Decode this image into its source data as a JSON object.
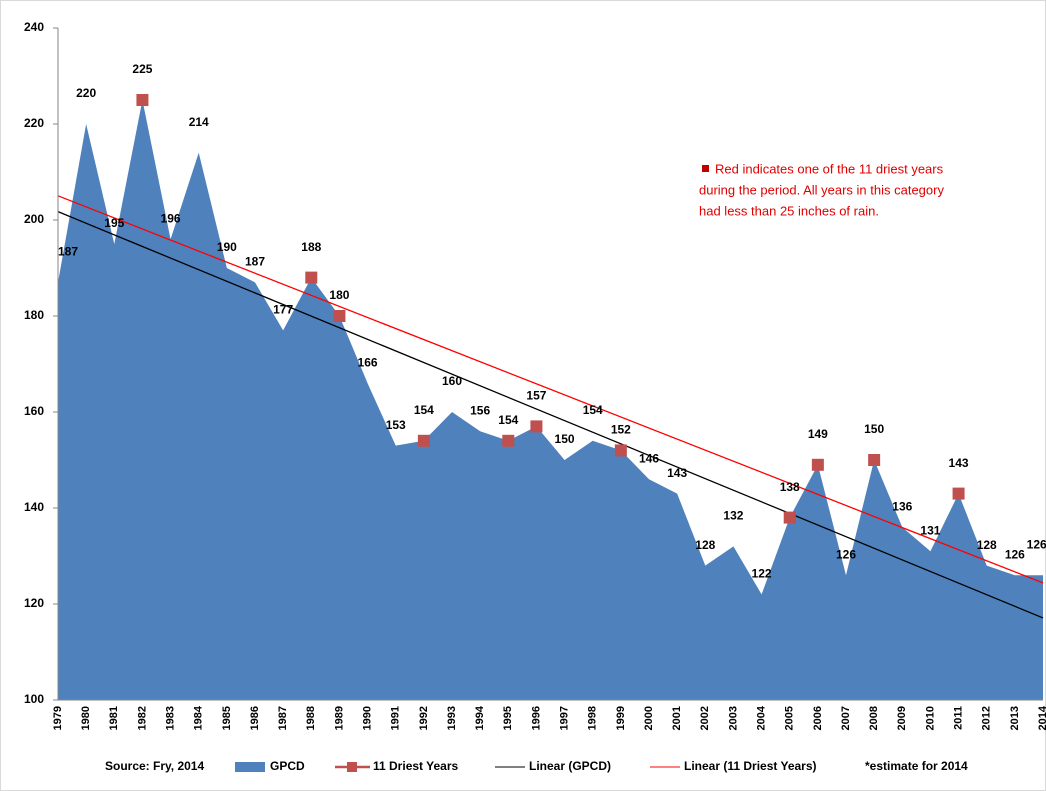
{
  "chart_data": {
    "type": "area",
    "categories": [
      "1979",
      "1980",
      "1981",
      "1982",
      "1983",
      "1984",
      "1985",
      "1986",
      "1987",
      "1988",
      "1989",
      "1990",
      "1991",
      "1992",
      "1993",
      "1994",
      "1995",
      "1996",
      "1997",
      "1998",
      "1999",
      "2000",
      "2001",
      "2002",
      "2003",
      "2004",
      "2005",
      "2006",
      "2007",
      "2008",
      "2009",
      "2010",
      "2011",
      "2012",
      "2013",
      "2014"
    ],
    "series": [
      {
        "name": "GPCD",
        "color": "#4f81bd",
        "values": [
          187,
          220,
          195,
          225,
          196,
          214,
          190,
          187,
          177,
          188,
          180,
          166,
          153,
          154,
          160,
          156,
          154,
          157,
          150,
          154,
          152,
          146,
          143,
          128,
          132,
          122,
          138,
          149,
          126,
          150,
          136,
          131,
          143,
          128,
          126,
          126
        ],
        "value_labels": [
          "187",
          "220",
          "195",
          "225",
          "196",
          "214",
          "190",
          "187",
          "177",
          "188",
          "180",
          "166",
          "153",
          "154",
          "160",
          "156",
          "154",
          "157",
          "150",
          "154",
          "152",
          "146",
          "143",
          "128",
          "132",
          "122",
          "138",
          "149",
          "126",
          "150",
          "136",
          "131",
          "143",
          "128",
          "126",
          "126*"
        ],
        "trendline": {
          "name": "Linear (GPCD)",
          "color": "#000000"
        }
      },
      {
        "name": "11 Driest Years",
        "color": "#c0504d",
        "values": [
          null,
          null,
          null,
          225,
          null,
          null,
          null,
          null,
          null,
          188,
          180,
          null,
          null,
          154,
          null,
          null,
          154,
          157,
          null,
          null,
          152,
          null,
          null,
          null,
          null,
          null,
          138,
          149,
          null,
          150,
          null,
          null,
          143,
          null,
          null,
          null
        ],
        "trendline": {
          "name": "Linear (11 Driest Years)",
          "color": "#ff0000"
        }
      }
    ],
    "ylim": [
      100,
      240
    ],
    "yticks": [
      100,
      120,
      140,
      160,
      180,
      200,
      220,
      240
    ],
    "annotation": [
      "Red indicates one of the 11 driest years",
      "during the period. All years in this category",
      "had less than 25 inches of rain."
    ],
    "source": "Source: Fry, 2014",
    "note": "*estimate for 2014",
    "grid": false
  }
}
